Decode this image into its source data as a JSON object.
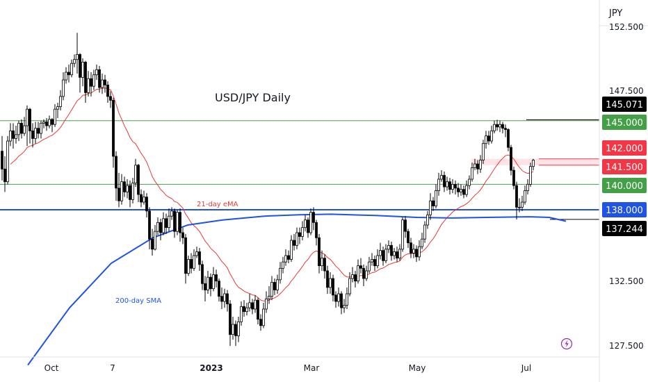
{
  "chart_data": {
    "type": "candlestick",
    "title": "USD/JPY Daily",
    "currency": "JPY",
    "y_ticks": [
      "127.500",
      "132.500",
      "147.500",
      "152.500"
    ],
    "x_ticks": [
      "Oct",
      "7",
      "2023",
      "Mar",
      "May",
      "Jul"
    ],
    "ylim": [
      126.5,
      153.5
    ],
    "horizontal_levels": [
      {
        "value": 145.0,
        "label": "145.000",
        "color": "#43a047",
        "label_bg": "#43a047"
      },
      {
        "value": 140.0,
        "label": "140.000",
        "color": "#43a047",
        "label_bg": "#43a047"
      },
      {
        "value": 138.0,
        "label": "138.000",
        "color": "#1e53e5",
        "label_bg": "#1e53e5"
      },
      {
        "value": 137.244,
        "label": "137.244",
        "color": "#000000",
        "label_bg": "#000000"
      },
      {
        "value": 145.071,
        "label": "145.071",
        "color": "#000000",
        "label_bg": "#000000"
      }
    ],
    "resistance_zone": {
      "from": 141.5,
      "to": 142.0,
      "labels": [
        "142.000",
        "141.500"
      ],
      "color": "#f23645"
    },
    "annotations": {
      "ema_label": "21-day eMA",
      "sma_label": "200-day SMA"
    },
    "colors": {
      "up": "#ffffff",
      "down": "#000000",
      "ema": "#e53935",
      "sma": "#1e53e5"
    },
    "candles": [
      [
        142.6,
        141.2,
        143.8,
        140.3
      ],
      [
        141.2,
        140.2,
        142.2,
        139.4
      ],
      [
        140.2,
        143.4,
        143.8,
        140.0
      ],
      [
        143.4,
        144.2,
        144.8,
        143.0
      ],
      [
        144.2,
        143.6,
        144.8,
        142.8
      ],
      [
        143.6,
        143.9,
        144.6,
        143.2
      ],
      [
        143.9,
        144.8,
        145.0,
        143.4
      ],
      [
        144.8,
        144.0,
        145.1,
        143.6
      ],
      [
        144.0,
        144.6,
        145.3,
        143.8
      ],
      [
        144.6,
        145.9,
        146.2,
        143.0
      ],
      [
        145.9,
        144.2,
        146.0,
        143.2
      ],
      [
        144.2,
        143.6,
        144.8,
        142.9
      ],
      [
        143.6,
        144.4,
        144.9,
        143.2
      ],
      [
        144.4,
        144.0,
        144.9,
        143.6
      ],
      [
        144.0,
        144.8,
        145.0,
        143.6
      ],
      [
        144.8,
        144.9,
        145.1,
        144.4
      ],
      [
        144.9,
        144.6,
        145.2,
        144.2
      ],
      [
        144.6,
        145.1,
        145.4,
        144.4
      ],
      [
        145.1,
        144.7,
        145.2,
        144.1
      ],
      [
        144.7,
        145.9,
        146.3,
        144.5
      ],
      [
        145.9,
        146.1,
        146.4,
        145.2
      ],
      [
        146.1,
        146.9,
        147.4,
        145.8
      ],
      [
        146.9,
        148.2,
        148.8,
        146.6
      ],
      [
        148.2,
        148.8,
        149.2,
        147.9
      ],
      [
        148.8,
        148.6,
        149.4,
        148.0
      ],
      [
        148.6,
        149.5,
        149.8,
        148.4
      ],
      [
        149.5,
        149.8,
        150.2,
        149.2
      ],
      [
        149.8,
        150.2,
        151.9,
        148.7
      ],
      [
        150.2,
        148.4,
        150.3,
        147.2
      ],
      [
        148.4,
        149.6,
        149.9,
        147.7
      ],
      [
        149.6,
        147.2,
        149.7,
        146.4
      ],
      [
        147.2,
        148.3,
        148.9,
        146.9
      ],
      [
        148.3,
        147.7,
        148.8,
        146.9
      ],
      [
        147.7,
        148.6,
        149.0,
        147.4
      ],
      [
        148.6,
        149.0,
        149.4,
        148.2
      ],
      [
        149.0,
        147.6,
        149.3,
        147.2
      ],
      [
        147.6,
        148.2,
        148.7,
        147.1
      ],
      [
        148.2,
        147.8,
        148.6,
        147.2
      ],
      [
        147.8,
        146.9,
        148.1,
        146.4
      ],
      [
        146.9,
        146.6,
        147.3,
        146.0
      ],
      [
        146.6,
        142.2,
        146.8,
        141.3
      ],
      [
        142.2,
        139.7,
        142.6,
        138.7
      ],
      [
        139.7,
        138.7,
        140.9,
        138.2
      ],
      [
        138.7,
        140.2,
        140.8,
        138.4
      ],
      [
        140.2,
        139.4,
        140.6,
        139.0
      ],
      [
        139.4,
        139.9,
        140.4,
        138.9
      ],
      [
        139.9,
        138.8,
        140.3,
        138.2
      ],
      [
        138.8,
        140.1,
        140.5,
        138.5
      ],
      [
        140.1,
        141.5,
        142.0,
        139.8
      ],
      [
        141.5,
        139.2,
        141.6,
        138.6
      ],
      [
        139.2,
        138.6,
        139.6,
        138.2
      ],
      [
        138.6,
        139.0,
        139.5,
        138.4
      ],
      [
        139.0,
        137.9,
        139.3,
        137.4
      ],
      [
        137.9,
        135.7,
        138.2,
        134.9
      ],
      [
        135.7,
        134.9,
        136.5,
        134.4
      ],
      [
        134.9,
        136.3,
        136.8,
        134.8
      ],
      [
        136.3,
        137.0,
        137.4,
        136.0
      ],
      [
        137.0,
        136.2,
        137.3,
        135.6
      ],
      [
        136.2,
        137.3,
        137.8,
        136.0
      ],
      [
        137.3,
        136.6,
        137.7,
        136.1
      ],
      [
        136.6,
        137.5,
        138.1,
        136.3
      ],
      [
        137.5,
        137.9,
        138.2,
        137.2
      ],
      [
        137.9,
        136.3,
        138.1,
        135.8
      ],
      [
        136.3,
        137.8,
        138.0,
        136.0
      ],
      [
        137.8,
        136.2,
        138.1,
        135.5
      ],
      [
        136.2,
        135.8,
        136.6,
        135.3
      ],
      [
        135.8,
        133.0,
        136.1,
        132.2
      ],
      [
        133.0,
        134.1,
        134.4,
        132.8
      ],
      [
        134.1,
        133.4,
        134.6,
        133.0
      ],
      [
        133.4,
        134.4,
        134.9,
        133.2
      ],
      [
        134.4,
        134.7,
        135.1,
        134.2
      ],
      [
        134.7,
        133.7,
        135.0,
        133.2
      ],
      [
        133.7,
        132.2,
        134.0,
        131.7
      ],
      [
        132.2,
        131.7,
        132.8,
        130.8
      ],
      [
        131.7,
        132.7,
        133.2,
        131.4
      ],
      [
        132.7,
        131.8,
        133.0,
        131.2
      ],
      [
        131.8,
        132.9,
        133.5,
        131.6
      ],
      [
        132.9,
        132.4,
        133.3,
        131.9
      ],
      [
        132.4,
        131.2,
        132.6,
        130.8
      ],
      [
        131.2,
        130.8,
        131.9,
        130.2
      ],
      [
        130.8,
        131.4,
        131.8,
        130.3
      ],
      [
        131.4,
        130.6,
        131.7,
        130.0
      ],
      [
        130.6,
        128.2,
        130.9,
        127.3
      ],
      [
        128.2,
        129.0,
        129.6,
        127.8
      ],
      [
        129.0,
        128.1,
        129.3,
        127.3
      ],
      [
        128.1,
        129.2,
        129.6,
        127.6
      ],
      [
        129.2,
        130.4,
        130.8,
        128.9
      ],
      [
        130.4,
        130.0,
        130.9,
        129.6
      ],
      [
        130.0,
        130.3,
        130.7,
        129.7
      ],
      [
        130.3,
        130.7,
        131.4,
        130.0
      ],
      [
        130.7,
        130.2,
        131.0,
        129.8
      ],
      [
        130.2,
        130.9,
        131.3,
        129.9
      ],
      [
        130.9,
        129.4,
        131.1,
        129.0
      ],
      [
        129.4,
        128.9,
        129.8,
        128.5
      ],
      [
        128.9,
        130.2,
        130.7,
        128.7
      ],
      [
        130.2,
        131.0,
        131.6,
        129.9
      ],
      [
        131.0,
        131.2,
        132.0,
        130.6
      ],
      [
        131.2,
        132.3,
        132.8,
        130.9
      ],
      [
        132.3,
        131.7,
        132.6,
        131.3
      ],
      [
        131.7,
        132.5,
        132.9,
        131.4
      ],
      [
        132.5,
        133.4,
        133.9,
        132.2
      ],
      [
        133.4,
        133.9,
        134.3,
        133.0
      ],
      [
        133.9,
        134.4,
        134.9,
        133.6
      ],
      [
        134.4,
        134.1,
        134.8,
        133.8
      ],
      [
        134.1,
        135.6,
        136.0,
        133.9
      ],
      [
        135.6,
        135.2,
        136.1,
        134.8
      ],
      [
        135.2,
        136.2,
        136.6,
        134.9
      ],
      [
        136.2,
        135.9,
        136.6,
        135.3
      ],
      [
        135.9,
        136.6,
        137.1,
        135.6
      ],
      [
        136.6,
        137.2,
        137.6,
        136.3
      ],
      [
        137.2,
        136.2,
        137.4,
        135.8
      ],
      [
        136.2,
        137.8,
        138.1,
        136.0
      ],
      [
        137.8,
        137.0,
        138.2,
        136.4
      ],
      [
        137.0,
        135.8,
        137.2,
        135.2
      ],
      [
        135.8,
        133.6,
        136.1,
        133.0
      ],
      [
        133.6,
        134.2,
        134.8,
        133.2
      ],
      [
        134.2,
        133.2,
        134.5,
        132.6
      ],
      [
        133.2,
        131.9,
        133.6,
        131.4
      ],
      [
        131.9,
        132.6,
        133.1,
        131.4
      ],
      [
        132.6,
        131.3,
        132.9,
        130.8
      ],
      [
        131.3,
        130.8,
        131.6,
        130.3
      ],
      [
        130.8,
        131.4,
        131.9,
        130.4
      ],
      [
        131.4,
        130.3,
        131.6,
        129.8
      ],
      [
        130.3,
        130.5,
        131.0,
        129.9
      ],
      [
        130.5,
        131.4,
        131.9,
        130.2
      ],
      [
        131.4,
        132.6,
        133.1,
        131.2
      ],
      [
        132.6,
        132.9,
        133.5,
        132.3
      ],
      [
        132.9,
        132.4,
        133.2,
        131.9
      ],
      [
        132.4,
        133.6,
        134.1,
        132.2
      ],
      [
        133.6,
        133.4,
        134.2,
        133.0
      ],
      [
        133.4,
        132.6,
        133.7,
        132.0
      ],
      [
        132.6,
        133.2,
        133.6,
        132.4
      ],
      [
        133.2,
        133.9,
        134.3,
        133.0
      ],
      [
        133.9,
        134.1,
        134.6,
        133.6
      ],
      [
        134.1,
        133.6,
        134.4,
        133.2
      ],
      [
        133.6,
        134.4,
        134.9,
        133.4
      ],
      [
        134.4,
        134.8,
        135.4,
        134.1
      ],
      [
        134.8,
        134.0,
        135.1,
        133.6
      ],
      [
        134.0,
        134.9,
        135.3,
        133.8
      ],
      [
        134.9,
        135.2,
        135.6,
        134.6
      ],
      [
        135.2,
        134.4,
        135.5,
        134.0
      ],
      [
        134.4,
        134.7,
        135.0,
        134.1
      ],
      [
        134.7,
        134.2,
        135.1,
        133.9
      ],
      [
        134.2,
        134.9,
        135.3,
        134.0
      ],
      [
        134.9,
        137.2,
        137.4,
        134.7
      ],
      [
        137.2,
        136.3,
        137.5,
        135.8
      ],
      [
        136.3,
        135.4,
        136.5,
        135.0
      ],
      [
        135.4,
        134.6,
        135.8,
        134.2
      ],
      [
        134.6,
        134.9,
        135.3,
        134.2
      ],
      [
        134.9,
        134.3,
        135.2,
        133.9
      ],
      [
        134.3,
        135.1,
        135.6,
        134.0
      ],
      [
        135.1,
        135.7,
        136.2,
        134.9
      ],
      [
        135.7,
        136.8,
        137.1,
        135.4
      ],
      [
        136.8,
        137.6,
        137.9,
        136.5
      ],
      [
        137.6,
        138.7,
        139.3,
        137.2
      ],
      [
        138.7,
        138.3,
        139.0,
        137.9
      ],
      [
        138.3,
        139.5,
        140.0,
        138.1
      ],
      [
        139.5,
        140.4,
        140.9,
        139.1
      ],
      [
        140.4,
        140.7,
        141.1,
        140.2
      ],
      [
        140.7,
        139.8,
        141.0,
        139.4
      ],
      [
        139.8,
        140.2,
        140.6,
        139.5
      ],
      [
        140.2,
        139.6,
        140.5,
        139.2
      ],
      [
        139.6,
        140.0,
        140.4,
        139.3
      ],
      [
        140.0,
        139.7,
        140.3,
        139.2
      ],
      [
        139.7,
        139.4,
        140.1,
        139.0
      ],
      [
        139.4,
        139.6,
        140.0,
        139.1
      ],
      [
        139.6,
        139.2,
        139.9,
        138.9
      ],
      [
        139.2,
        139.9,
        140.3,
        139.0
      ],
      [
        139.9,
        140.4,
        140.7,
        139.6
      ],
      [
        140.4,
        141.3,
        141.7,
        140.2
      ],
      [
        141.3,
        141.6,
        142.0,
        141.1
      ],
      [
        141.6,
        141.2,
        141.9,
        140.8
      ],
      [
        141.2,
        141.9,
        142.3,
        140.9
      ],
      [
        141.9,
        143.2,
        143.5,
        141.6
      ],
      [
        143.2,
        143.8,
        144.2,
        142.8
      ],
      [
        143.8,
        143.4,
        144.2,
        143.1
      ],
      [
        143.4,
        144.2,
        144.6,
        143.2
      ],
      [
        144.2,
        144.7,
        145.0,
        144.0
      ],
      [
        144.7,
        144.5,
        145.07,
        144.2
      ],
      [
        144.5,
        144.7,
        145.0,
        144.1
      ],
      [
        144.7,
        144.4,
        144.9,
        144.0
      ],
      [
        144.4,
        144.3,
        144.7,
        143.7
      ],
      [
        144.3,
        142.9,
        144.4,
        142.6
      ],
      [
        142.9,
        141.1,
        143.1,
        140.7
      ],
      [
        141.1,
        139.9,
        141.4,
        139.6
      ],
      [
        139.9,
        138.2,
        140.2,
        137.24
      ],
      [
        138.2,
        138.2,
        138.9,
        137.8
      ],
      [
        138.2,
        138.6,
        139.1,
        137.9
      ],
      [
        138.6,
        139.5,
        139.9,
        138.4
      ],
      [
        139.5,
        140.0,
        140.4,
        139.2
      ],
      [
        140.0,
        141.4,
        141.7,
        139.8
      ],
      [
        141.4,
        141.9,
        142.0,
        141.1
      ]
    ]
  }
}
